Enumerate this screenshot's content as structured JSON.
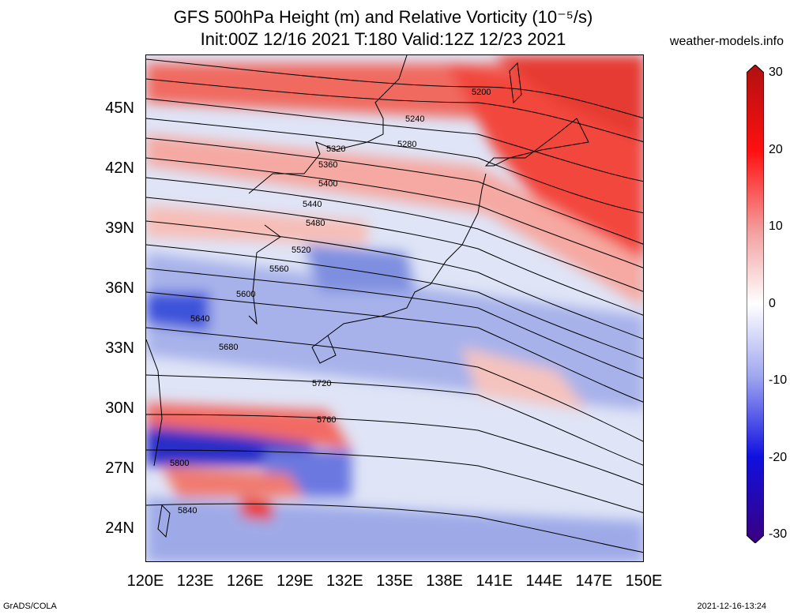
{
  "title_line1": "GFS 500hPa Height (m) and Relative Vorticity (10⁻⁵/s)",
  "title_line2": "Init:00Z 12/16 2021 T:180 Valid:12Z 12/23 2021",
  "site": "weather-models.info",
  "lat_labels": [
    "45N",
    "42N",
    "39N",
    "36N",
    "33N",
    "30N",
    "27N",
    "24N"
  ],
  "lon_labels": [
    "120E",
    "123E",
    "126E",
    "129E",
    "132E",
    "135E",
    "138E",
    "141E",
    "144E",
    "147E",
    "150E"
  ],
  "colorbar": {
    "ticks": [
      "30",
      "20",
      "10",
      "0",
      "-10",
      "-20",
      "-30"
    ],
    "colors": {
      "max": "#b00000",
      "mid": "#ffffff",
      "min": "#3a0080"
    }
  },
  "contour_labels": [
    "5200",
    "5240",
    "5280",
    "5320",
    "5360",
    "5400",
    "5440",
    "5480",
    "5520",
    "5560",
    "5600",
    "5640",
    "5680",
    "5720",
    "5760",
    "5800",
    "5840"
  ],
  "footer_left": "GrADS/COLA",
  "footer_right": "2021-12-16-13:24"
}
